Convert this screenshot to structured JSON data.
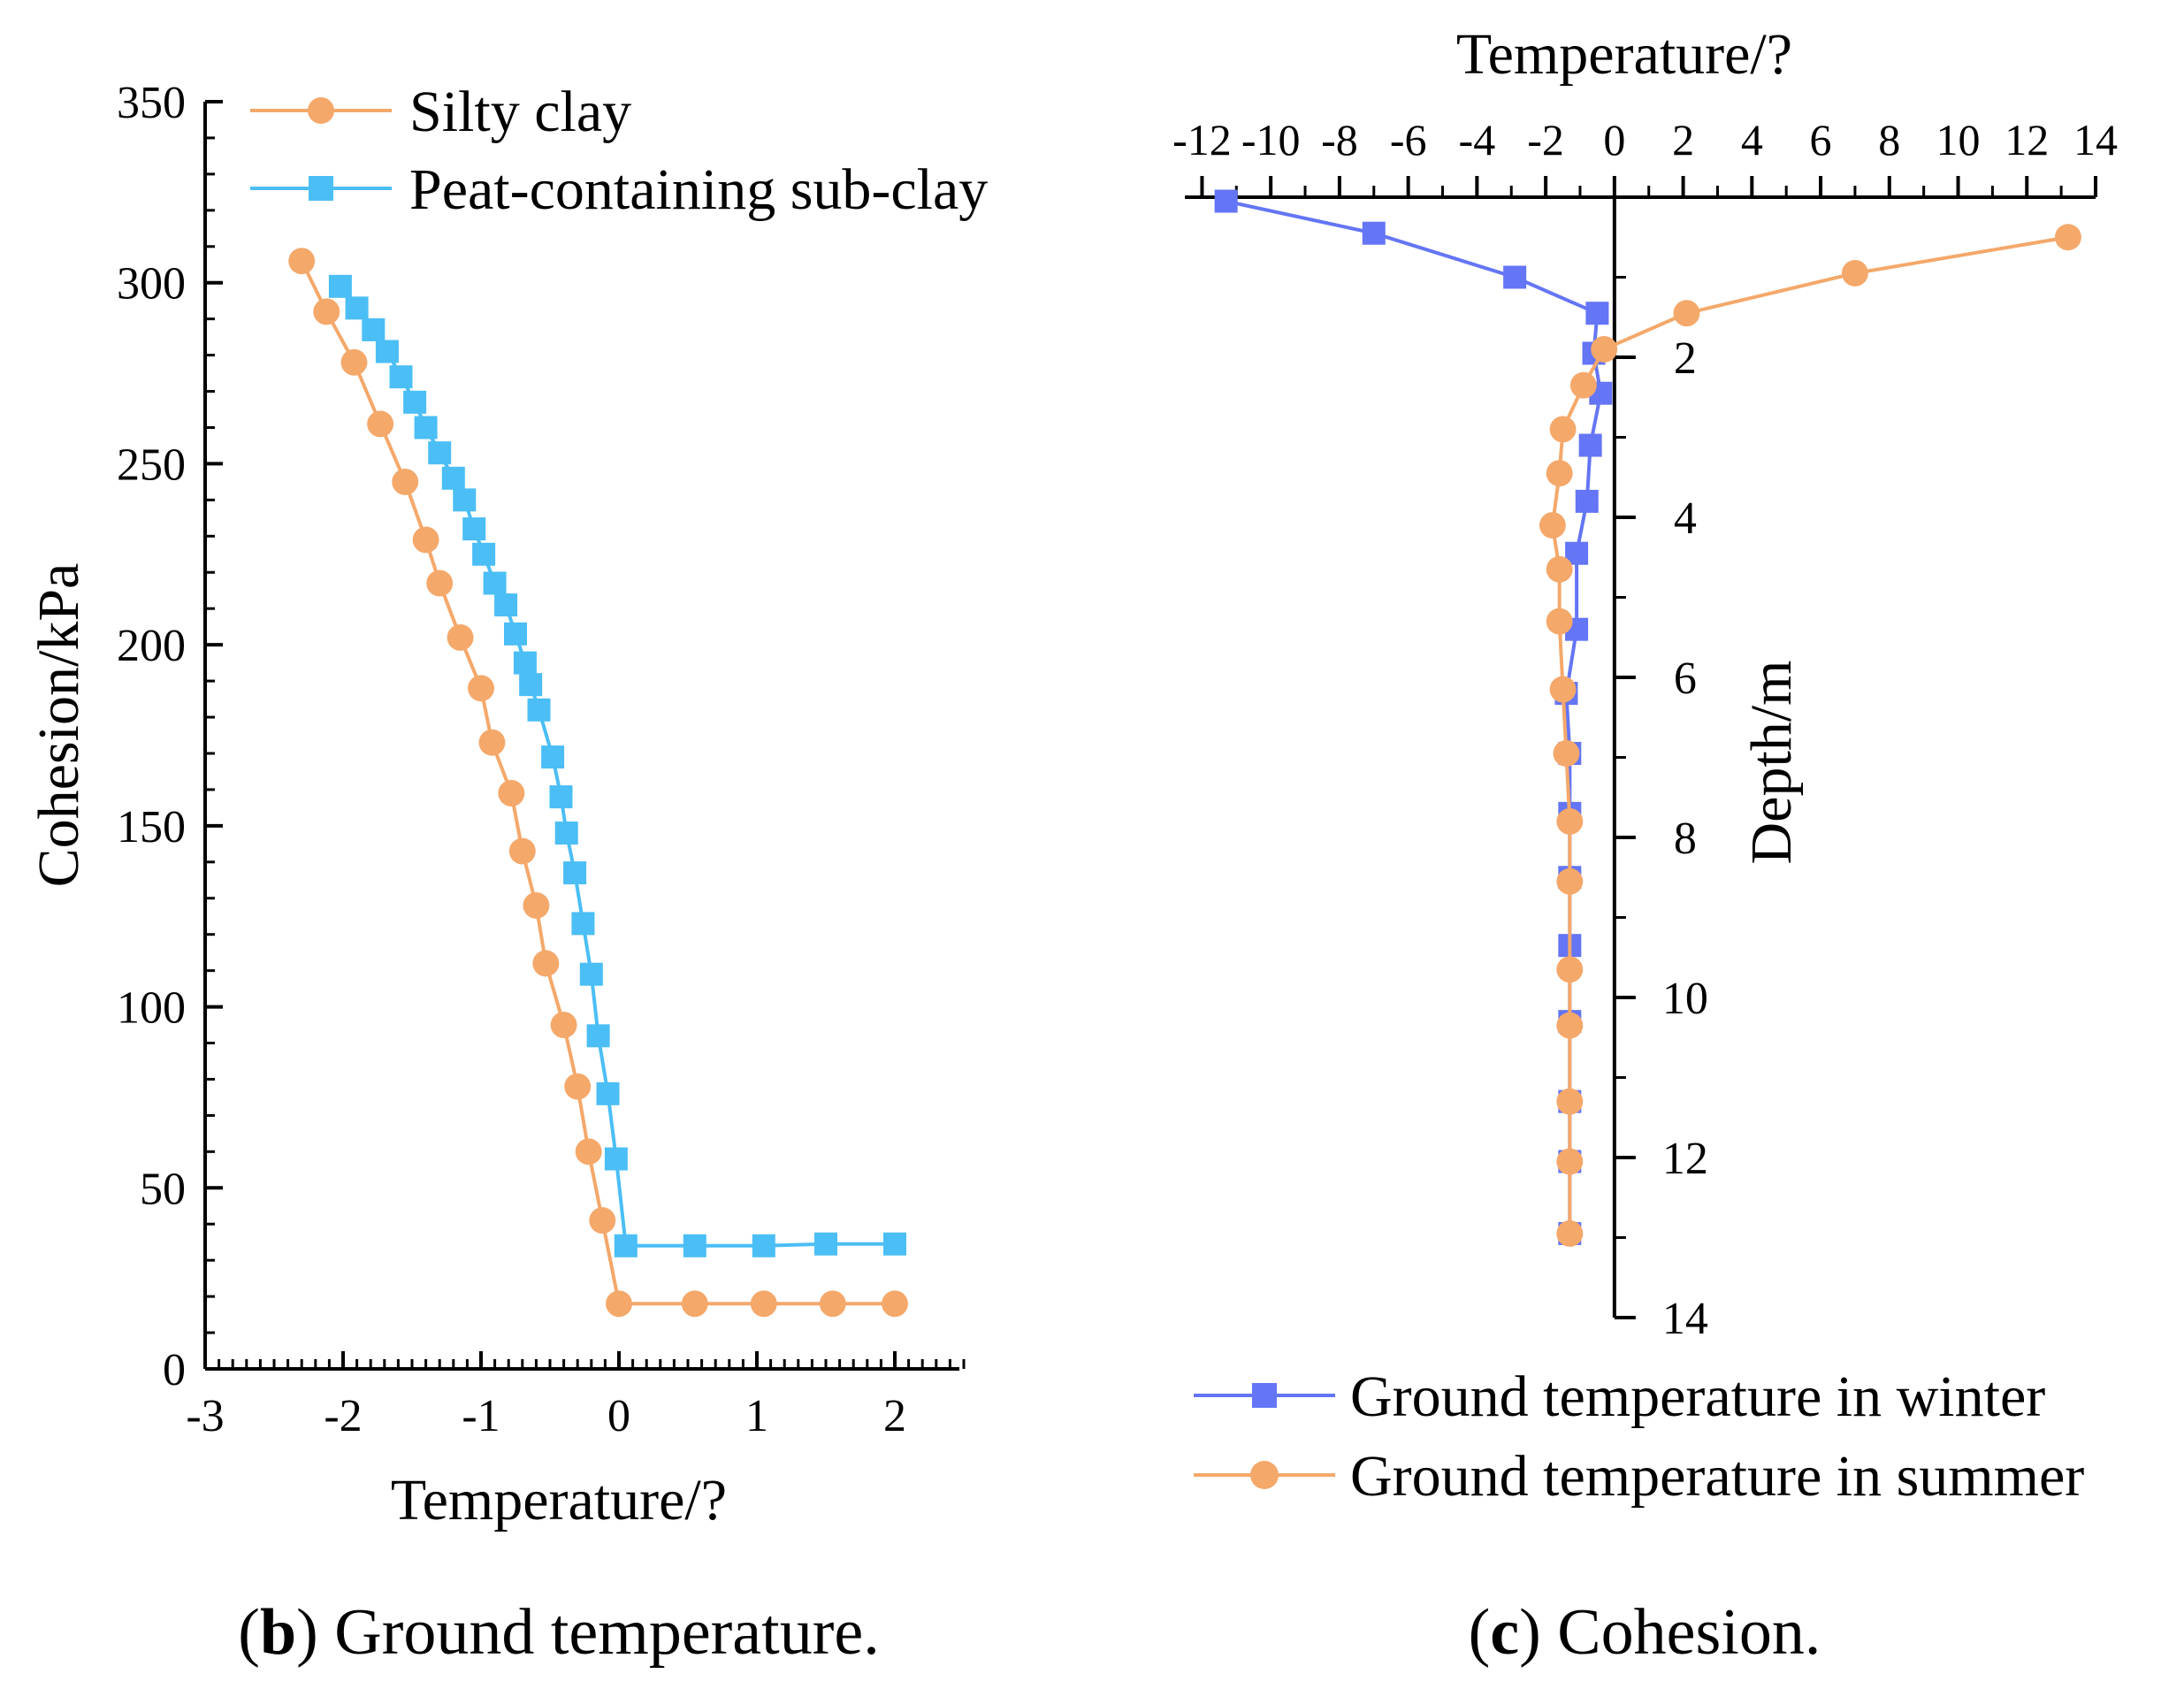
{
  "colors": {
    "orange": "#F4A86A",
    "light_blue": "#4BBEF5",
    "blue": "#6475F5",
    "axis": "#000000"
  },
  "chart_data": [
    {
      "type": "line",
      "panel": "b",
      "caption_letter": "b",
      "caption_text": "Ground temperature.",
      "xlabel": "Temperature/?",
      "ylabel": "Cohesion/kPa",
      "xlim": [
        -3,
        2.5
      ],
      "ylim": [
        0,
        350
      ],
      "xticks": [
        -3,
        -2,
        -1,
        0,
        1,
        2
      ],
      "yticks": [
        0,
        50,
        100,
        150,
        200,
        250,
        300,
        350
      ],
      "legend": "top-left",
      "series": [
        {
          "name": "Silty clay",
          "marker": "circle",
          "color": "#F4A86A",
          "points": [
            [
              -2.3,
              306
            ],
            [
              -2.12,
              292
            ],
            [
              -1.92,
              278
            ],
            [
              -1.73,
              261
            ],
            [
              -1.55,
              245
            ],
            [
              -1.4,
              229
            ],
            [
              -1.3,
              217
            ],
            [
              -1.15,
              202
            ],
            [
              -1.0,
              188
            ],
            [
              -0.92,
              173
            ],
            [
              -0.78,
              159
            ],
            [
              -0.7,
              143
            ],
            [
              -0.6,
              128
            ],
            [
              -0.53,
              112
            ],
            [
              -0.4,
              95
            ],
            [
              -0.3,
              78
            ],
            [
              -0.22,
              60
            ],
            [
              -0.12,
              41
            ],
            [
              0.0,
              18
            ],
            [
              0.55,
              18
            ],
            [
              1.05,
              18
            ],
            [
              1.55,
              18
            ],
            [
              2.0,
              18
            ]
          ]
        },
        {
          "name": "Peat-containing sub-clay",
          "marker": "square",
          "color": "#4BBEF5",
          "points": [
            [
              -2.02,
              299
            ],
            [
              -1.9,
              293
            ],
            [
              -1.78,
              287
            ],
            [
              -1.68,
              281
            ],
            [
              -1.58,
              274
            ],
            [
              -1.48,
              267
            ],
            [
              -1.4,
              260
            ],
            [
              -1.3,
              253
            ],
            [
              -1.2,
              246
            ],
            [
              -1.12,
              240
            ],
            [
              -1.05,
              232
            ],
            [
              -0.98,
              225
            ],
            [
              -0.9,
              217
            ],
            [
              -0.82,
              211
            ],
            [
              -0.75,
              203
            ],
            [
              -0.68,
              195
            ],
            [
              -0.64,
              189
            ],
            [
              -0.58,
              182
            ],
            [
              -0.48,
              169
            ],
            [
              -0.42,
              158
            ],
            [
              -0.38,
              148
            ],
            [
              -0.32,
              137
            ],
            [
              -0.26,
              123
            ],
            [
              -0.2,
              109
            ],
            [
              -0.15,
              92
            ],
            [
              -0.08,
              76
            ],
            [
              -0.02,
              58
            ],
            [
              0.05,
              34
            ],
            [
              0.55,
              34
            ],
            [
              1.05,
              34
            ],
            [
              1.5,
              34.5
            ],
            [
              2.0,
              34.5
            ]
          ]
        }
      ]
    },
    {
      "type": "line",
      "panel": "c",
      "caption_letter": "c",
      "caption_text": "Cohesion.",
      "xlabel": "Temperature/?",
      "ylabel": "Depth/m",
      "xlim": [
        -12.5,
        14
      ],
      "ylim": [
        0,
        14
      ],
      "y_inverted": true,
      "x_axis_position": "top",
      "y_axis_position": "x=0",
      "xticks": [
        -12,
        -10,
        -8,
        -6,
        -4,
        -2,
        0,
        2,
        4,
        6,
        8,
        10,
        12,
        14
      ],
      "xtick_labels": [
        "-12",
        "-10",
        "-8",
        "-6",
        "-4",
        "-2",
        "0",
        "2",
        "4",
        "6",
        "8",
        "10",
        "12",
        "14"
      ],
      "yticks": [
        2,
        4,
        6,
        8,
        10,
        12,
        14
      ],
      "legend": "bottom",
      "series": [
        {
          "name": "Ground temperature in winter",
          "marker": "square",
          "color": "#6475F5",
          "points": [
            [
              -11.3,
              0.05
            ],
            [
              -7.0,
              0.45
            ],
            [
              -2.9,
              1.0
            ],
            [
              -0.5,
              1.45
            ],
            [
              -0.6,
              1.95
            ],
            [
              -0.4,
              2.45
            ],
            [
              -0.7,
              3.1
            ],
            [
              -0.8,
              3.8
            ],
            [
              -1.1,
              4.45
            ],
            [
              -1.1,
              5.4
            ],
            [
              -1.4,
              6.2
            ],
            [
              -1.3,
              6.95
            ],
            [
              -1.3,
              7.7
            ],
            [
              -1.3,
              8.5
            ],
            [
              -1.3,
              9.35
            ],
            [
              -1.3,
              10.3
            ],
            [
              -1.3,
              11.3
            ],
            [
              -1.3,
              12.05
            ],
            [
              -1.3,
              12.95
            ]
          ]
        },
        {
          "name": "Ground temperature in summer",
          "marker": "circle",
          "color": "#F4A86A",
          "points": [
            [
              13.2,
              0.5
            ],
            [
              7.0,
              0.95
            ],
            [
              2.1,
              1.45
            ],
            [
              -0.3,
              1.9
            ],
            [
              -0.9,
              2.35
            ],
            [
              -1.5,
              2.9
            ],
            [
              -1.6,
              3.45
            ],
            [
              -1.8,
              4.1
            ],
            [
              -1.6,
              4.65
            ],
            [
              -1.6,
              5.3
            ],
            [
              -1.5,
              6.15
            ],
            [
              -1.4,
              6.95
            ],
            [
              -1.3,
              7.8
            ],
            [
              -1.3,
              8.55
            ],
            [
              -1.3,
              9.65
            ],
            [
              -1.3,
              10.35
            ],
            [
              -1.3,
              11.3
            ],
            [
              -1.3,
              12.05
            ],
            [
              -1.3,
              12.95
            ]
          ]
        }
      ]
    }
  ]
}
